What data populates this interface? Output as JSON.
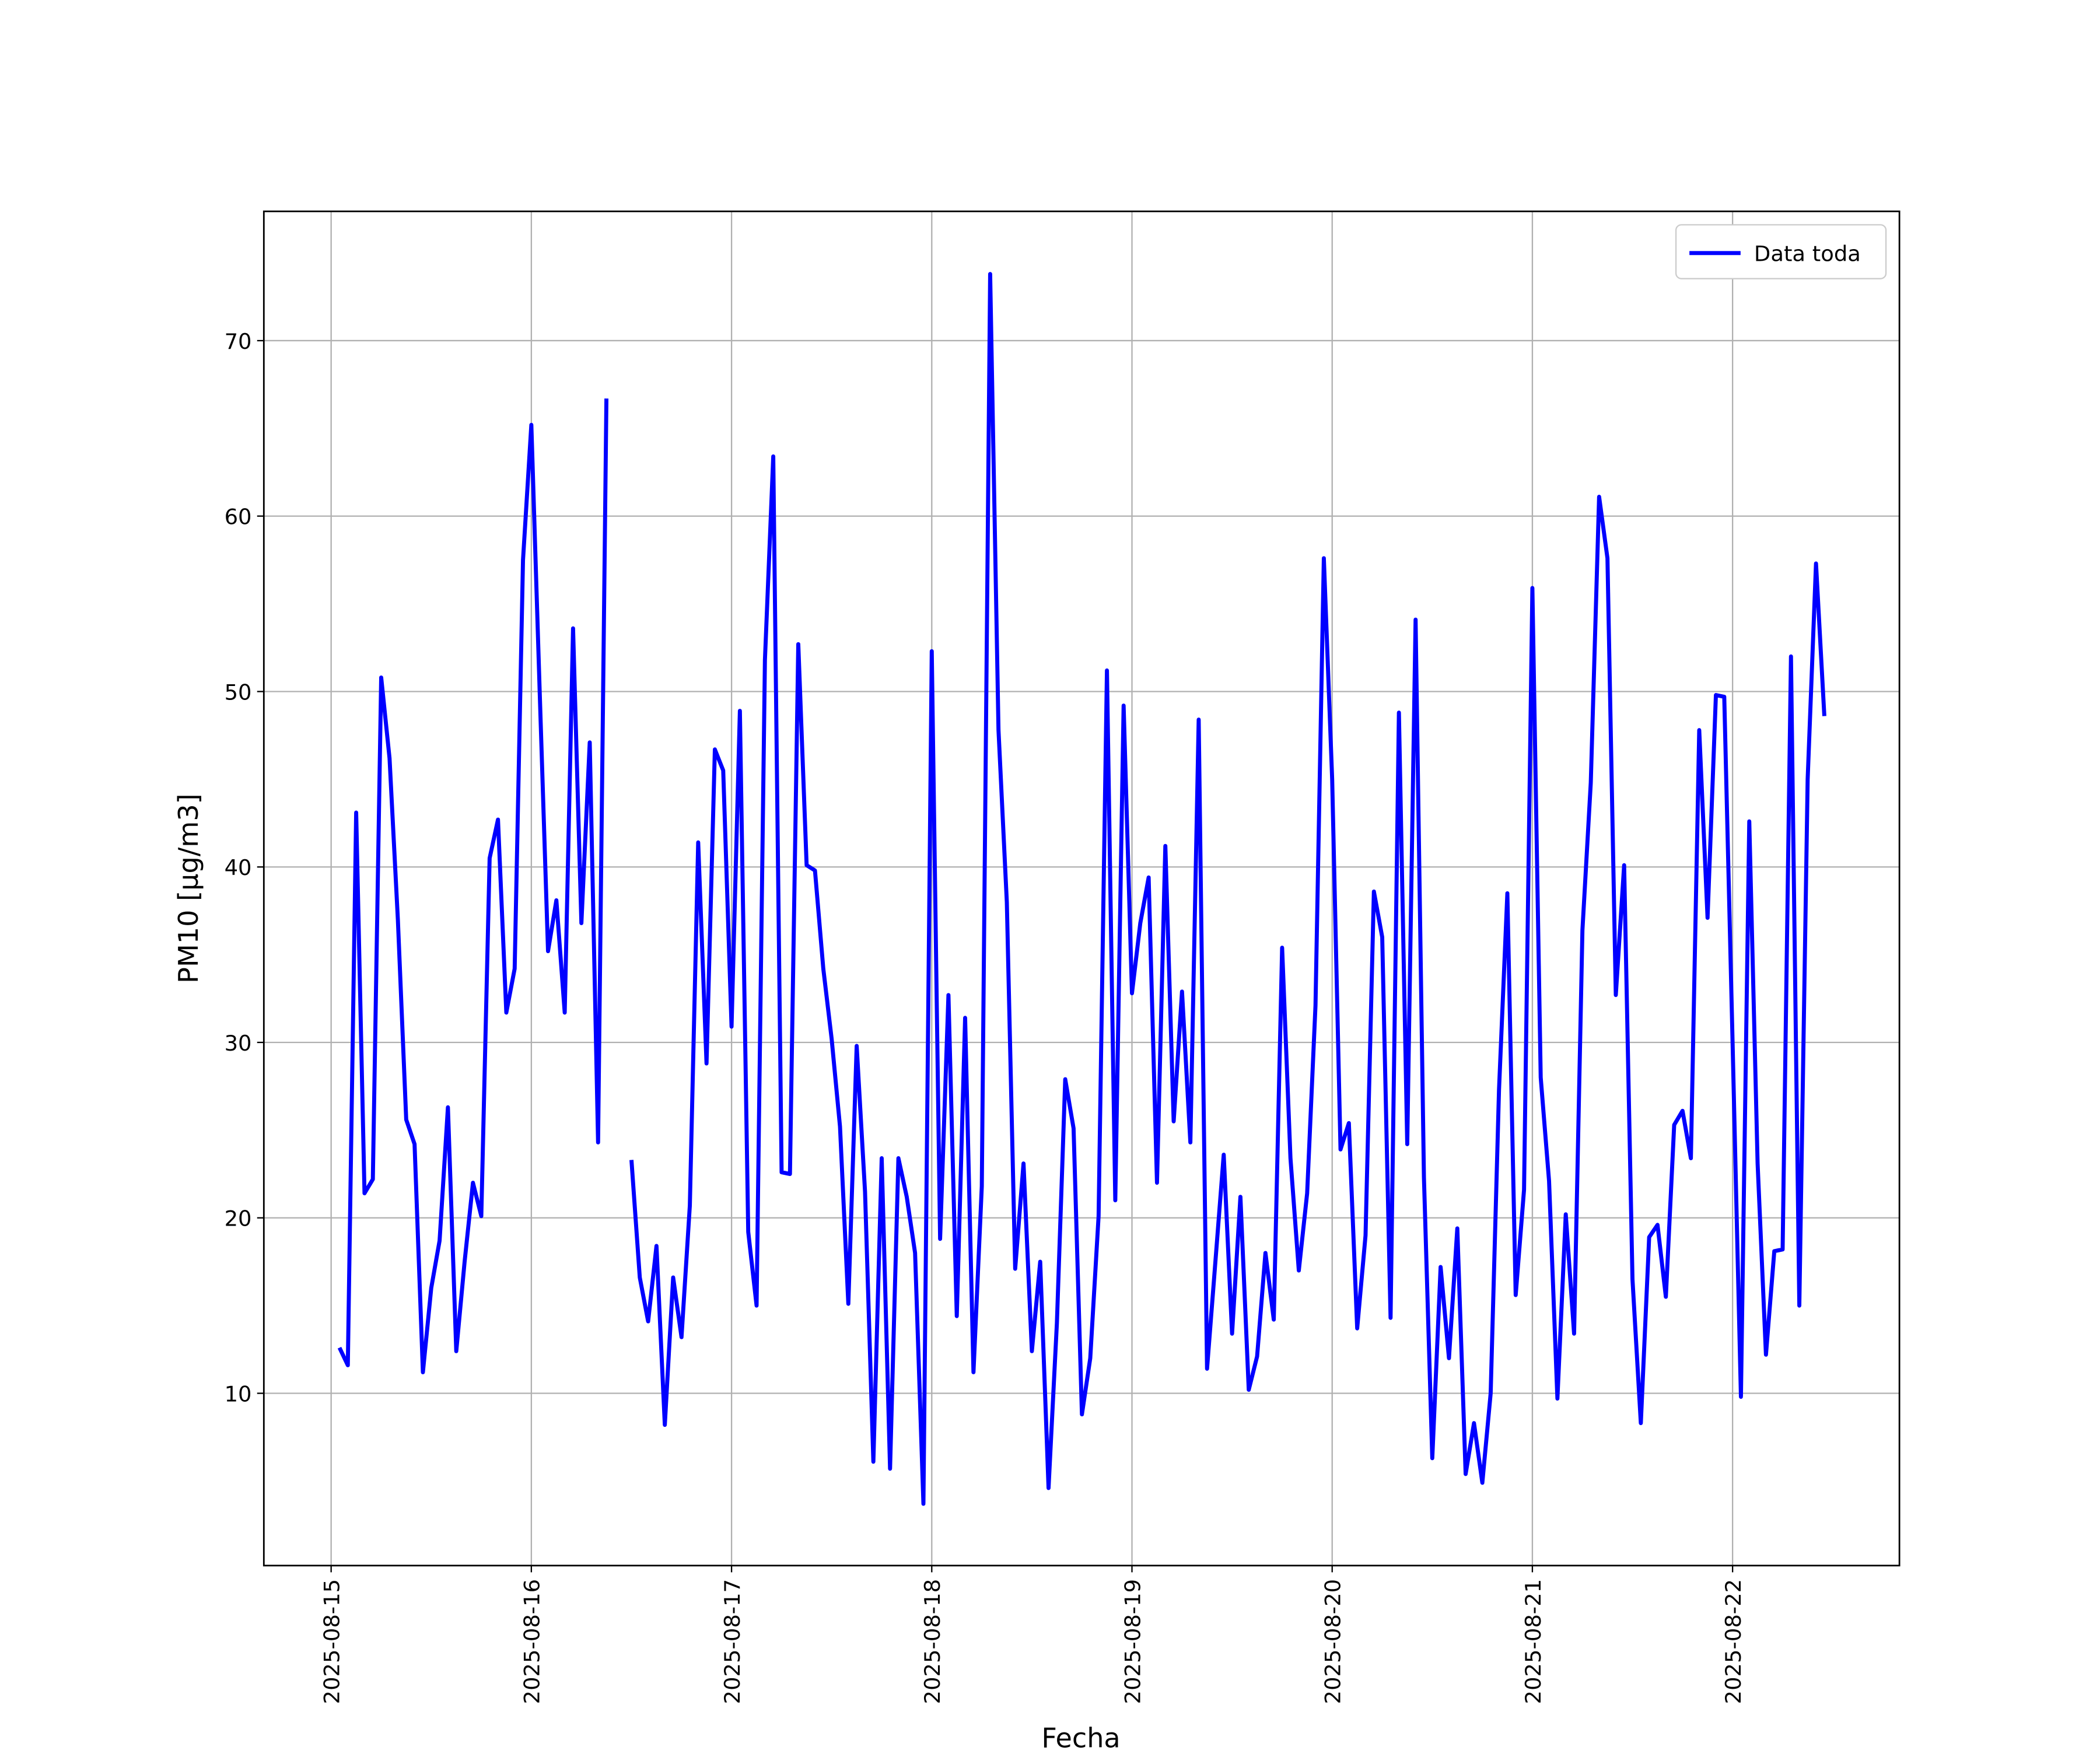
{
  "chart_data": {
    "type": "line",
    "xlabel": "Fecha",
    "ylabel": "PM10 [μg/m3]",
    "x": [
      "2025-08-15T01:00",
      "2025-08-15T02:00",
      "2025-08-15T03:00",
      "2025-08-15T04:00",
      "2025-08-15T05:00",
      "2025-08-15T06:00",
      "2025-08-15T07:00",
      "2025-08-15T08:00",
      "2025-08-15T09:00",
      "2025-08-15T10:00",
      "2025-08-15T11:00",
      "2025-08-15T12:00",
      "2025-08-15T13:00",
      "2025-08-15T14:00",
      "2025-08-15T15:00",
      "2025-08-15T16:00",
      "2025-08-15T17:00",
      "2025-08-15T18:00",
      "2025-08-15T19:00",
      "2025-08-15T20:00",
      "2025-08-15T21:00",
      "2025-08-15T22:00",
      "2025-08-15T23:00",
      "2025-08-16T00:00",
      "2025-08-16T01:00",
      "2025-08-16T02:00",
      "2025-08-16T03:00",
      "2025-08-16T04:00",
      "2025-08-16T05:00",
      "2025-08-16T06:00",
      "2025-08-16T07:00",
      "2025-08-16T08:00",
      "2025-08-16T09:00",
      "2025-08-16T10:00",
      "2025-08-16T11:00",
      "2025-08-16T12:00",
      "2025-08-16T13:00",
      "2025-08-16T14:00",
      "2025-08-16T15:00",
      "2025-08-16T16:00",
      "2025-08-16T17:00",
      "2025-08-16T18:00",
      "2025-08-16T19:00",
      "2025-08-16T20:00",
      "2025-08-16T21:00",
      "2025-08-16T22:00",
      "2025-08-16T23:00",
      "2025-08-17T00:00",
      "2025-08-17T01:00",
      "2025-08-17T02:00",
      "2025-08-17T03:00",
      "2025-08-17T04:00",
      "2025-08-17T05:00",
      "2025-08-17T06:00",
      "2025-08-17T07:00",
      "2025-08-17T08:00",
      "2025-08-17T09:00",
      "2025-08-17T10:00",
      "2025-08-17T11:00",
      "2025-08-17T12:00",
      "2025-08-17T13:00",
      "2025-08-17T14:00",
      "2025-08-17T15:00",
      "2025-08-17T16:00",
      "2025-08-17T17:00",
      "2025-08-17T18:00",
      "2025-08-17T19:00",
      "2025-08-17T20:00",
      "2025-08-17T21:00",
      "2025-08-17T22:00",
      "2025-08-17T23:00",
      "2025-08-18T00:00",
      "2025-08-18T01:00",
      "2025-08-18T02:00",
      "2025-08-18T03:00",
      "2025-08-18T04:00",
      "2025-08-18T05:00",
      "2025-08-18T06:00",
      "2025-08-18T07:00",
      "2025-08-18T08:00",
      "2025-08-18T09:00",
      "2025-08-18T10:00",
      "2025-08-18T11:00",
      "2025-08-18T12:00",
      "2025-08-18T13:00",
      "2025-08-18T14:00",
      "2025-08-18T15:00",
      "2025-08-18T16:00",
      "2025-08-18T17:00",
      "2025-08-18T18:00",
      "2025-08-18T19:00",
      "2025-08-18T20:00",
      "2025-08-18T21:00",
      "2025-08-18T22:00",
      "2025-08-18T23:00",
      "2025-08-19T00:00",
      "2025-08-19T01:00",
      "2025-08-19T02:00",
      "2025-08-19T03:00",
      "2025-08-19T04:00",
      "2025-08-19T05:00",
      "2025-08-19T06:00",
      "2025-08-19T07:00",
      "2025-08-19T08:00",
      "2025-08-19T09:00",
      "2025-08-19T10:00",
      "2025-08-19T11:00",
      "2025-08-19T12:00",
      "2025-08-19T13:00",
      "2025-08-19T14:00",
      "2025-08-19T15:00",
      "2025-08-19T16:00",
      "2025-08-19T17:00",
      "2025-08-19T18:00",
      "2025-08-19T19:00",
      "2025-08-19T20:00",
      "2025-08-19T21:00",
      "2025-08-19T22:00",
      "2025-08-19T23:00",
      "2025-08-20T00:00",
      "2025-08-20T01:00",
      "2025-08-20T02:00",
      "2025-08-20T03:00",
      "2025-08-20T04:00",
      "2025-08-20T05:00",
      "2025-08-20T06:00",
      "2025-08-20T07:00",
      "2025-08-20T08:00",
      "2025-08-20T09:00",
      "2025-08-20T10:00",
      "2025-08-20T11:00",
      "2025-08-20T12:00",
      "2025-08-20T13:00",
      "2025-08-20T14:00",
      "2025-08-20T15:00",
      "2025-08-20T16:00",
      "2025-08-20T17:00",
      "2025-08-20T18:00",
      "2025-08-20T19:00",
      "2025-08-20T20:00",
      "2025-08-20T21:00",
      "2025-08-20T22:00",
      "2025-08-20T23:00",
      "2025-08-21T00:00",
      "2025-08-21T01:00",
      "2025-08-21T02:00",
      "2025-08-21T03:00",
      "2025-08-21T04:00",
      "2025-08-21T05:00",
      "2025-08-21T06:00",
      "2025-08-21T07:00",
      "2025-08-21T08:00",
      "2025-08-21T09:00",
      "2025-08-21T10:00",
      "2025-08-21T11:00",
      "2025-08-21T12:00",
      "2025-08-21T13:00",
      "2025-08-21T14:00",
      "2025-08-21T15:00",
      "2025-08-21T16:00",
      "2025-08-21T17:00",
      "2025-08-21T18:00",
      "2025-08-21T19:00",
      "2025-08-21T20:00",
      "2025-08-21T21:00",
      "2025-08-21T22:00",
      "2025-08-21T23:00",
      "2025-08-22T00:00",
      "2025-08-22T01:00",
      "2025-08-22T02:00",
      "2025-08-22T03:00",
      "2025-08-22T04:00",
      "2025-08-22T05:00",
      "2025-08-22T06:00",
      "2025-08-22T07:00",
      "2025-08-22T08:00",
      "2025-08-22T09:00",
      "2025-08-22T10:00",
      "2025-08-22T11:00"
    ],
    "series": [
      {
        "name": "Data toda",
        "color": "#0000ff",
        "values": [
          12.6,
          11.6,
          43.1,
          21.4,
          22.2,
          50.8,
          46.2,
          37,
          25.6,
          24.2,
          11.2,
          16,
          18.7,
          26.3,
          12.4,
          17.5,
          22,
          20.1,
          40.5,
          42.7,
          31.7,
          34.2,
          57.5,
          65.2,
          50,
          35.2,
          38.1,
          31.7,
          53.6,
          36.8,
          47.1,
          24.3,
          66.7,
          null,
          null,
          23.3,
          16.6,
          14.1,
          18.4,
          8.2,
          16.6,
          13.2,
          20.7,
          41.4,
          28.8,
          46.7,
          45.5,
          30.9,
          48.9,
          19.2,
          15,
          51.8,
          63.4,
          22.6,
          22.5,
          52.7,
          40.1,
          39.8,
          34.2,
          30.2,
          25.2,
          15.1,
          29.8,
          21.5,
          6.1,
          23.4,
          5.7,
          23.4,
          21.2,
          18,
          3.7,
          52.3,
          18.8,
          32.7,
          14.4,
          31.4,
          11.2,
          21.8,
          73.8,
          47.8,
          38,
          17.1,
          23.1,
          12.4,
          17.5,
          4.6,
          14,
          27.9,
          25.1,
          8.8,
          12,
          20.1,
          51.2,
          21,
          49.2,
          32.8,
          36.8,
          39.4,
          22,
          41.2,
          25.5,
          32.9,
          24.3,
          48.4,
          11.4,
          17.5,
          23.6,
          13.4,
          21.2,
          10.2,
          12.1,
          18,
          14.2,
          35.4,
          23.4,
          17,
          21.4,
          32.1,
          57.6,
          45,
          23.9,
          25.4,
          13.7,
          19,
          38.6,
          36,
          14.3,
          48.8,
          24.2,
          54.1,
          22.3,
          6.3,
          17.2,
          12,
          19.4,
          5.4,
          8.3,
          4.9,
          10,
          27.3,
          38.5,
          15.6,
          21.6,
          55.9,
          28,
          22.1,
          9.7,
          20.2,
          13.4,
          36.4,
          44.8,
          61.1,
          57.6,
          32.7,
          40.1,
          16.5,
          8.3,
          18.9,
          19.6,
          15.5,
          25.3,
          26.1,
          23.4,
          47.8,
          37.1,
          49.8,
          49.7,
          30,
          9.8,
          42.6,
          23.1,
          12.2,
          18.1,
          18.2,
          52,
          15,
          45,
          57.3,
          48.6
        ]
      }
    ],
    "xlim": [
      "2025-08-14T15:56",
      "2025-08-22T20:00"
    ],
    "xticks": [
      "2025-08-15",
      "2025-08-16",
      "2025-08-17",
      "2025-08-18",
      "2025-08-19",
      "2025-08-20",
      "2025-08-21",
      "2025-08-22"
    ],
    "ylim": [
      0.18,
      77.37
    ],
    "yticks": [
      10,
      20,
      30,
      40,
      50,
      60,
      70
    ],
    "grid": true,
    "legend": "upper right"
  }
}
